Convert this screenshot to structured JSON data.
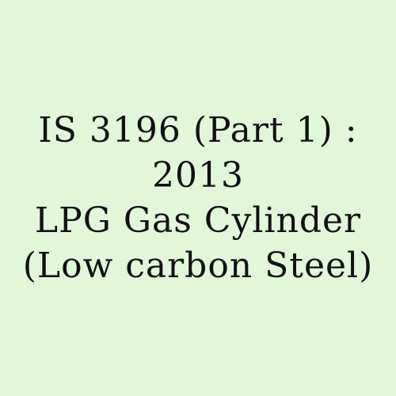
{
  "card": {
    "background_color": "#e0f8d8",
    "text_color": "#111111",
    "lines": [
      "IS 3196 (Part 1) :",
      "2013",
      "LPG Gas Cylinder",
      "(Low carbon Steel)"
    ]
  }
}
